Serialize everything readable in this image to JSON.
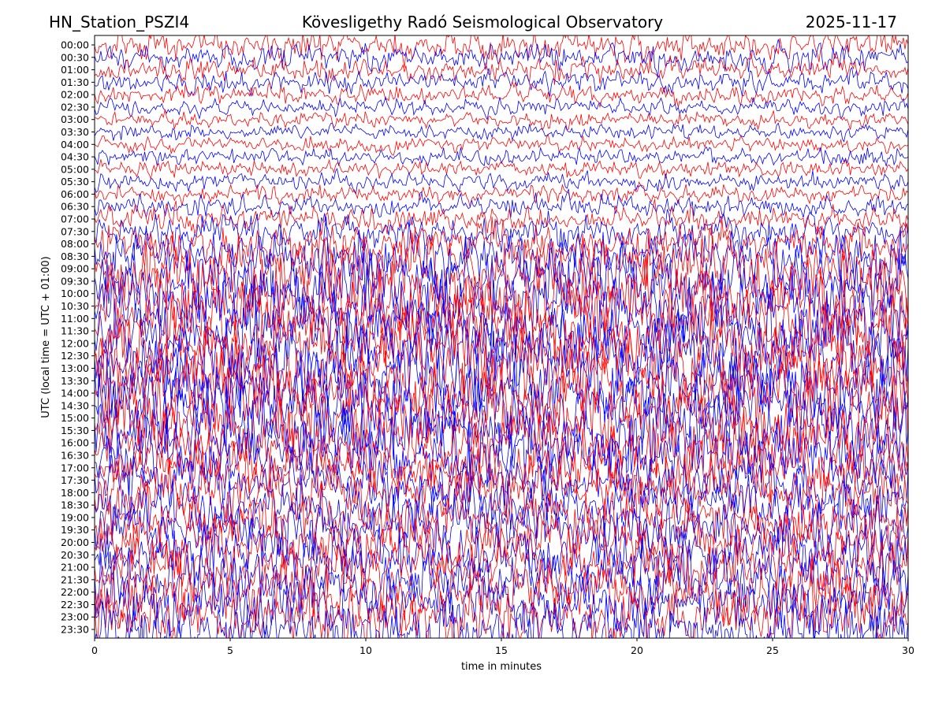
{
  "header": {
    "station": "HN_Station_PSZI4",
    "observatory": "Kövesligethy Radó Seismological Observatory",
    "date": "2025-11-17"
  },
  "colors": {
    "trace_a": "#ff0000",
    "trace_b": "#0000ff",
    "frame": "#000000",
    "background": "#ffffff"
  },
  "chart_data": {
    "type": "line",
    "title": "Kövesligethy Radó Seismological Observatory",
    "xlabel": "time in minutes",
    "ylabel": "UTC (local time = UTC + 01:00)",
    "xlim": [
      0,
      30
    ],
    "x_ticks": [
      "0",
      "5",
      "10",
      "15",
      "20",
      "25",
      "30"
    ],
    "y_ticks": [
      "00:00",
      "00:30",
      "01:00",
      "01:30",
      "02:00",
      "02:30",
      "03:00",
      "03:30",
      "04:00",
      "04:30",
      "05:00",
      "05:30",
      "06:00",
      "06:30",
      "07:00",
      "07:30",
      "08:00",
      "08:30",
      "09:00",
      "09:30",
      "10:00",
      "10:30",
      "11:00",
      "11:30",
      "12:00",
      "12:30",
      "13:00",
      "13:30",
      "14:00",
      "14:30",
      "15:00",
      "15:30",
      "16:00",
      "16:30",
      "17:00",
      "17:30",
      "18:00",
      "18:30",
      "19:00",
      "19:30",
      "20:00",
      "20:30",
      "21:00",
      "21:30",
      "22:00",
      "22:30",
      "23:00",
      "23:30"
    ],
    "trace_colors_alternating": [
      "#ff0000",
      "#0000ff"
    ],
    "relative_activity_by_row": [
      0.55,
      0.5,
      0.45,
      0.4,
      0.35,
      0.3,
      0.28,
      0.22,
      0.25,
      0.3,
      0.28,
      0.3,
      0.32,
      0.4,
      0.5,
      0.6,
      0.7,
      0.8,
      0.9,
      0.95,
      1.0,
      1.0,
      1.0,
      1.0,
      1.0,
      1.0,
      1.0,
      1.0,
      1.0,
      1.0,
      1.0,
      1.0,
      0.95,
      0.9,
      0.85,
      0.85,
      0.85,
      0.85,
      0.85,
      0.85,
      0.85,
      0.85,
      0.9,
      0.9,
      0.9,
      0.9,
      0.9,
      0.9
    ],
    "grid": false,
    "legend": "none"
  }
}
